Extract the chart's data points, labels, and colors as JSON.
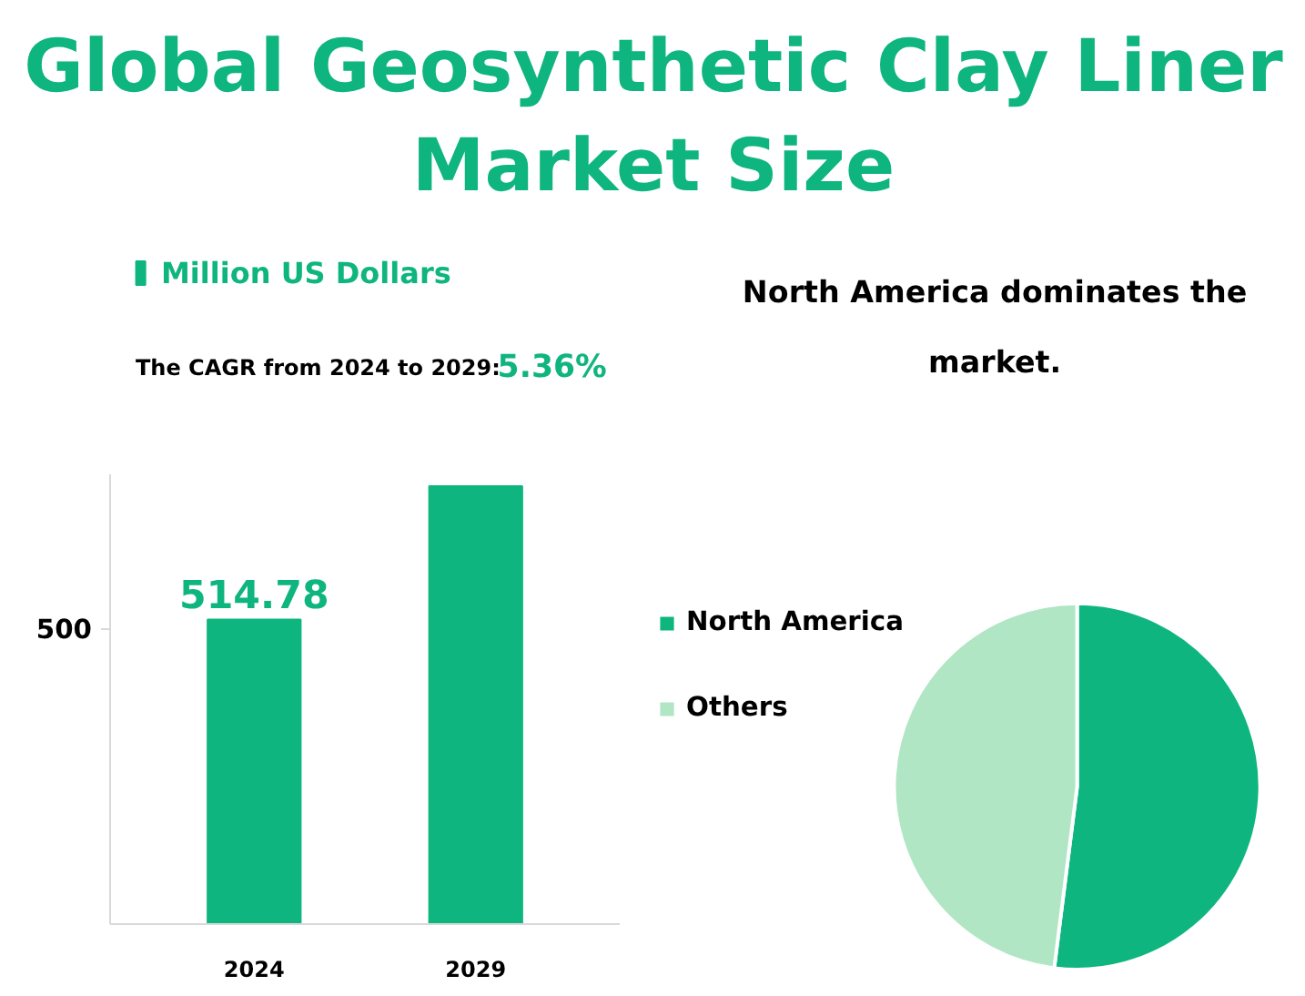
{
  "chart_data": [
    {
      "type": "bar",
      "title": "Global Geosynthetic Clay Liner Market Size",
      "categories": [
        "2024",
        "2029"
      ],
      "series": [
        {
          "name": "Million US Dollars",
          "color": "#0fb57e",
          "values": [
            514.78,
            740
          ]
        }
      ],
      "value_labels": [
        "514.78",
        null
      ],
      "ylim": [
        0,
        760
      ],
      "yticks": [
        500
      ],
      "grid": false,
      "legend": "top left",
      "annotations": [
        "The CAGR from 2024 to 2029:",
        "5.36%"
      ]
    },
    {
      "type": "pie",
      "title": "North America dominates the market.",
      "categories": [
        "North America",
        "Others"
      ],
      "values": [
        52,
        48
      ],
      "colors": [
        "#0fb57e",
        "#b0e6c4"
      ],
      "legend": "left"
    }
  ]
}
